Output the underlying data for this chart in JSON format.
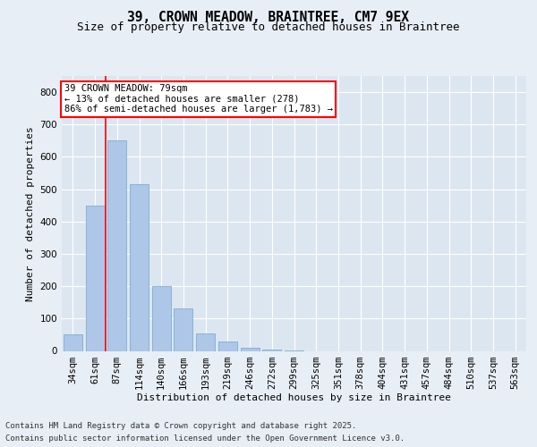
{
  "title_line1": "39, CROWN MEADOW, BRAINTREE, CM7 9EX",
  "title_line2": "Size of property relative to detached houses in Braintree",
  "xlabel": "Distribution of detached houses by size in Braintree",
  "ylabel": "Number of detached properties",
  "categories": [
    "34sqm",
    "61sqm",
    "87sqm",
    "114sqm",
    "140sqm",
    "166sqm",
    "193sqm",
    "219sqm",
    "246sqm",
    "272sqm",
    "299sqm",
    "325sqm",
    "351sqm",
    "378sqm",
    "404sqm",
    "431sqm",
    "457sqm",
    "484sqm",
    "510sqm",
    "537sqm",
    "563sqm"
  ],
  "values": [
    50,
    450,
    650,
    515,
    200,
    130,
    55,
    30,
    10,
    5,
    2,
    0,
    0,
    0,
    0,
    0,
    0,
    0,
    0,
    0,
    0
  ],
  "bar_color": "#aec6e8",
  "bar_edge_color": "#7bafd4",
  "property_line_x": 1.5,
  "annotation_text": "39 CROWN MEADOW: 79sqm\n← 13% of detached houses are smaller (278)\n86% of semi-detached houses are larger (1,783) →",
  "annotation_box_color": "white",
  "annotation_box_edge_color": "red",
  "vline_color": "red",
  "ylim": [
    0,
    850
  ],
  "yticks": [
    0,
    100,
    200,
    300,
    400,
    500,
    600,
    700,
    800
  ],
  "background_color": "#e8eef5",
  "plot_background": "#dce6f0",
  "footer_line1": "Contains HM Land Registry data © Crown copyright and database right 2025.",
  "footer_line2": "Contains public sector information licensed under the Open Government Licence v3.0.",
  "title_fontsize": 10.5,
  "subtitle_fontsize": 9,
  "axis_label_fontsize": 8,
  "tick_fontsize": 7.5,
  "annotation_fontsize": 7.5,
  "footer_fontsize": 6.5
}
